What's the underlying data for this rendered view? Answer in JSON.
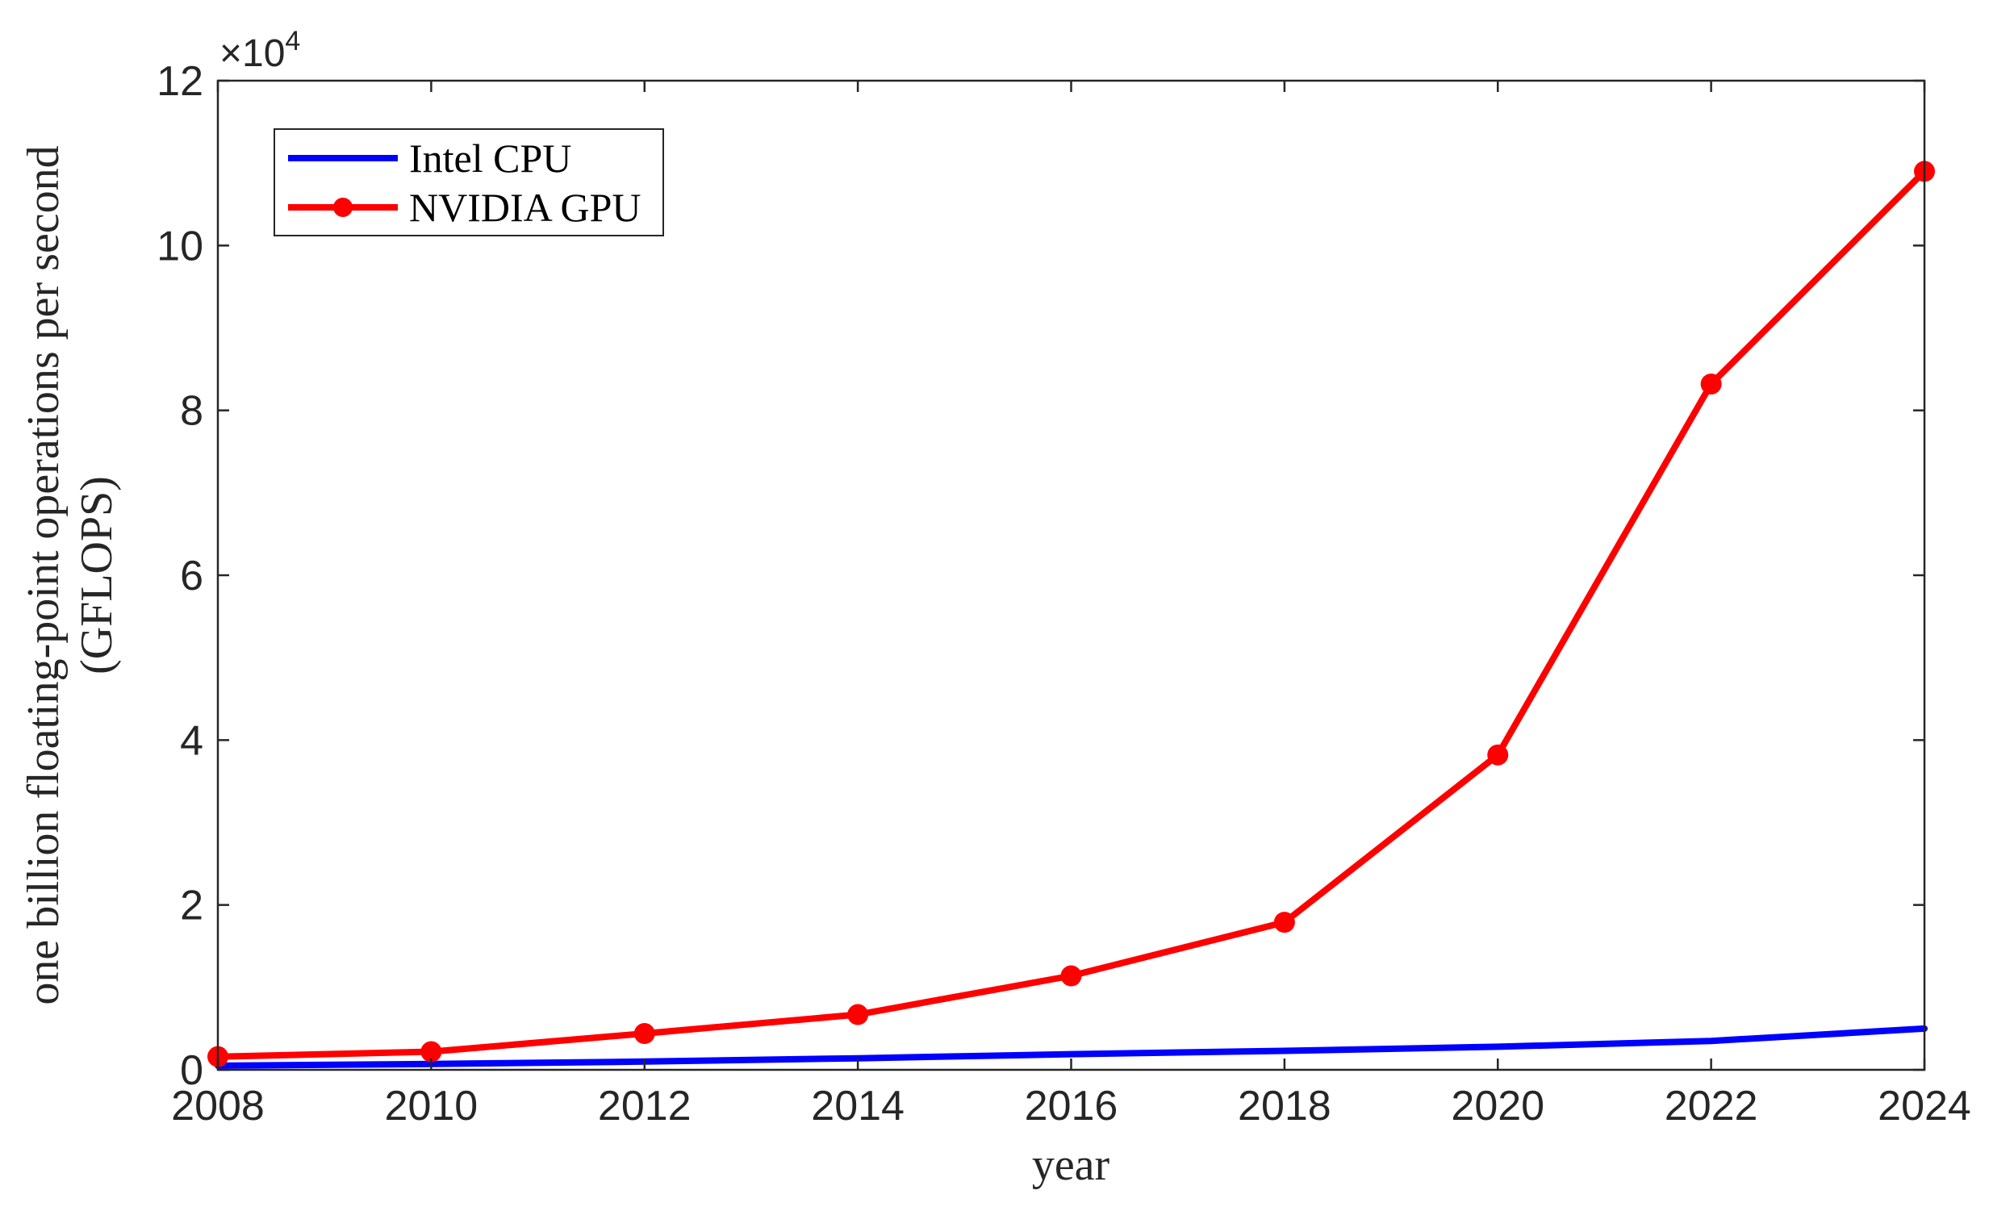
{
  "chart_data": {
    "type": "line",
    "xlabel": "year",
    "ylabel_line1": "one billion floating-point operations per second",
    "ylabel_line2": "(GFLOPS)",
    "exponent_prefix": "×10",
    "exponent_power": "4",
    "xlim": [
      2008,
      2024
    ],
    "ylim": [
      0,
      120000
    ],
    "x_ticks": [
      2008,
      2010,
      2012,
      2014,
      2016,
      2018,
      2020,
      2022,
      2024
    ],
    "x_tick_labels": [
      "2008",
      "2010",
      "2012",
      "2014",
      "2016",
      "2018",
      "2020",
      "2022",
      "2024"
    ],
    "y_ticks": [
      0,
      20000,
      40000,
      60000,
      80000,
      100000,
      120000
    ],
    "y_tick_labels": [
      "0",
      "2",
      "4",
      "6",
      "8",
      "10",
      "12"
    ],
    "grid": false,
    "legend_position": "top-left",
    "series": [
      {
        "name": "Intel CPU",
        "color": "#0000ff",
        "marker": "none",
        "x": [
          2008,
          2010,
          2012,
          2014,
          2016,
          2018,
          2020,
          2022,
          2024
        ],
        "values": [
          500,
          700,
          1000,
          1400,
          1900,
          2300,
          2800,
          3500,
          5000
        ]
      },
      {
        "name": "NVIDIA GPU",
        "color": "#ff0000",
        "marker": "circle",
        "x": [
          2008,
          2010,
          2012,
          2014,
          2016,
          2018,
          2020,
          2022,
          2024
        ],
        "values": [
          1600,
          2200,
          4400,
          6700,
          11400,
          17900,
          38200,
          83200,
          109000
        ]
      }
    ]
  }
}
